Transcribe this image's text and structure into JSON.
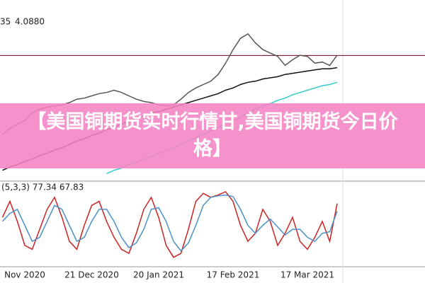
{
  "chart_data": [
    {
      "type": "line",
      "price_prefix": "35",
      "reference_line": {
        "value": 4.088,
        "label": "4.0880",
        "color": "#8b1a2b"
      },
      "ylim": [
        2.98,
        4.58
      ],
      "series": [
        {
          "color": "#555555",
          "values": [
            3.39,
            3.44,
            3.48,
            3.51,
            3.58,
            3.61,
            3.63,
            3.64,
            3.65,
            3.67,
            3.7,
            3.71,
            3.73,
            3.75,
            3.76,
            3.78,
            3.76,
            3.73,
            3.7,
            3.68,
            3.67,
            3.65,
            3.64,
            3.65,
            3.7,
            3.76,
            3.8,
            3.83,
            3.86,
            3.92,
            4.02,
            4.14,
            4.24,
            4.28,
            4.2,
            4.14,
            4.11,
            4.08,
            4.0,
            4.05,
            4.09,
            4.08,
            4.02,
            4.03,
            4.0,
            4.09
          ]
        },
        {
          "color": "#111111",
          "values": [
            3.07,
            3.1,
            3.12,
            3.15,
            3.17,
            3.2,
            3.22,
            3.25,
            3.27,
            3.3,
            3.33,
            3.35,
            3.38,
            3.4,
            3.43,
            3.45,
            3.48,
            3.5,
            3.53,
            3.55,
            3.58,
            3.59,
            3.61,
            3.63,
            3.65,
            3.67,
            3.69,
            3.71,
            3.73,
            3.75,
            3.78,
            3.8,
            3.83,
            3.85,
            3.86,
            3.88,
            3.89,
            3.9,
            3.92,
            3.93,
            3.94,
            3.95,
            3.96,
            3.97,
            3.97,
            3.98
          ]
        },
        {
          "color": "#33cccc",
          "values": [
            null,
            null,
            null,
            null,
            null,
            null,
            null,
            null,
            null,
            null,
            null,
            null,
            null,
            null,
            3.04,
            3.07,
            3.09,
            3.12,
            3.14,
            3.17,
            3.19,
            3.22,
            3.24,
            3.27,
            3.3,
            3.33,
            3.36,
            3.39,
            3.42,
            3.45,
            3.48,
            3.51,
            3.54,
            3.58,
            3.61,
            3.64,
            3.66,
            3.69,
            3.71,
            3.74,
            3.76,
            3.78,
            3.8,
            3.82,
            3.83,
            3.85
          ]
        }
      ]
    },
    {
      "type": "line",
      "indicator_label": "(5,3,3) 77.34 67.83",
      "ylim": [
        0,
        100
      ],
      "categories": [
        null,
        null,
        null,
        "Nov 2020",
        null,
        null,
        null,
        null,
        null,
        null,
        null,
        null,
        "21 Dec 2020",
        null,
        null,
        null,
        null,
        null,
        null,
        null,
        null,
        "20 Jan 2021",
        null,
        null,
        null,
        null,
        null,
        null,
        null,
        null,
        null,
        "17 Feb 2021",
        null,
        null,
        null,
        null,
        null,
        null,
        null,
        null,
        null,
        "17 Mar 2021",
        null,
        null,
        null,
        null
      ],
      "series": [
        {
          "color": "#cc2222",
          "values": [
            60,
            80,
            55,
            25,
            20,
            45,
            70,
            85,
            60,
            30,
            20,
            50,
            75,
            80,
            55,
            35,
            20,
            15,
            40,
            70,
            85,
            60,
            25,
            10,
            15,
            45,
            80,
            90,
            85,
            88,
            92,
            80,
            50,
            30,
            40,
            70,
            55,
            25,
            40,
            60,
            30,
            20,
            35,
            55,
            30,
            77.34
          ]
        },
        {
          "color": "#4a90c8",
          "values": [
            55,
            65,
            70,
            50,
            30,
            35,
            55,
            75,
            70,
            50,
            30,
            35,
            55,
            70,
            70,
            55,
            35,
            22,
            28,
            45,
            70,
            72,
            55,
            30,
            18,
            28,
            50,
            75,
            85,
            87,
            88,
            86,
            70,
            50,
            40,
            50,
            58,
            48,
            38,
            45,
            45,
            35,
            30,
            40,
            42,
            67.83
          ]
        }
      ]
    }
  ],
  "banner": {
    "title": "【美国铜期货实时行情甘,美国铜期货今日价格】"
  }
}
